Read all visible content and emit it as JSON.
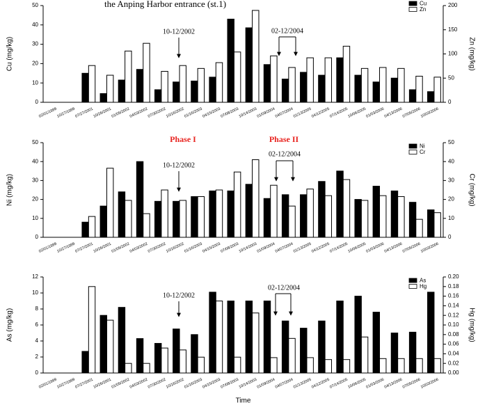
{
  "chart_data": [
    {
      "type": "bar",
      "title": "the Anping Harbor entrance (st.1)",
      "y_label": "Cu (mg/kg)",
      "y2_label": "Zn (mg/kg)",
      "categories": [
        "02/01/1999",
        "10/27/1999",
        "07/27/2001",
        "10/26/2001",
        "01/05/2002",
        "04/03/2002",
        "07/30/2002",
        "10/16/2002",
        "01/16/2003",
        "04/15/2003",
        "07/08/2003",
        "10/14/2003",
        "01/09/2004",
        "04/07/2004",
        "01/13/2005",
        "04/12/2005",
        "07/14/2005",
        "10/06/2005",
        "01/03/2006",
        "04/13/2006",
        "07/05/2006",
        "10/03/2006"
      ],
      "series": [
        {
          "name": "Cu",
          "color": "#000000",
          "values": [
            null,
            null,
            15,
            4.5,
            11.5,
            17,
            6.5,
            10.5,
            11,
            13,
            43,
            38.5,
            19.5,
            12,
            15.5,
            14,
            23,
            14,
            10.5,
            12.5,
            6.5,
            5.5
          ]
        },
        {
          "name": "Zn",
          "color": "#ffffff",
          "axis": "y2",
          "values": [
            null,
            null,
            76,
            56,
            106,
            122,
            64,
            76,
            70,
            82,
            104,
            190,
            96,
            72,
            92,
            92,
            116,
            70,
            72,
            70,
            54,
            52
          ]
        }
      ],
      "ylim": [
        0,
        50
      ],
      "yticks": [
        0,
        10,
        20,
        30,
        40,
        50
      ],
      "y2lim": [
        0,
        200
      ],
      "y2ticks": [
        0,
        50,
        100,
        150,
        200
      ],
      "annotations": [
        {
          "text": "10-12/2002",
          "color": "#000000"
        },
        {
          "text": "02-12/2004",
          "color": "#000000"
        }
      ]
    },
    {
      "type": "bar",
      "y_label": "Ni (mg/kg)",
      "y2_label": "Cr (mg/kg)",
      "categories": [
        "02/01/1999",
        "10/27/1999",
        "07/27/2001",
        "10/26/2001",
        "01/05/2002",
        "04/03/2002",
        "07/30/2002",
        "10/16/2002",
        "01/16/2003",
        "04/15/2003",
        "07/08/2003",
        "10/14/2003",
        "01/09/2004",
        "04/07/2004",
        "01/13/2005",
        "04/12/2005",
        "07/14/2005",
        "10/06/2005",
        "01/03/2006",
        "04/13/2006",
        "07/05/2006",
        "10/03/2006"
      ],
      "series": [
        {
          "name": "Ni",
          "color": "#000000",
          "values": [
            null,
            null,
            8,
            16.5,
            24,
            40,
            19,
            19,
            21.5,
            24.5,
            24.5,
            28,
            20.5,
            22.5,
            22.5,
            29.5,
            35,
            20,
            27,
            24.5,
            18.5,
            14.5
          ]
        },
        {
          "name": "Cr",
          "color": "#ffffff",
          "axis": "y2",
          "values": [
            null,
            null,
            11,
            36.5,
            19.5,
            12.5,
            25,
            19.5,
            21.5,
            25,
            34.5,
            41,
            27.5,
            16.5,
            25.5,
            22,
            30.5,
            19.5,
            22,
            21.5,
            9.5,
            13
          ]
        }
      ],
      "ylim": [
        0,
        50
      ],
      "yticks": [
        0,
        10,
        20,
        30,
        40,
        50
      ],
      "y2lim": [
        0,
        50
      ],
      "y2ticks": [
        0,
        10,
        20,
        30,
        40,
        50
      ],
      "annotations": [
        {
          "text": "Phase I",
          "color": "#e8231f"
        },
        {
          "text": "Phase II",
          "color": "#e8231f"
        },
        {
          "text": "10-12/2002",
          "color": "#000000"
        },
        {
          "text": "02-12/2004",
          "color": "#000000"
        }
      ]
    },
    {
      "type": "bar",
      "y_label": "As (mg/kg)",
      "y2_label": "Hg (mg/kg)",
      "x_label": "Time",
      "categories": [
        "02/01/1999",
        "10/27/1999",
        "07/27/2001",
        "10/26/2001",
        "01/05/2002",
        "04/03/2002",
        "07/30/2002",
        "10/16/2002",
        "01/16/2003",
        "04/15/2003",
        "07/08/2003",
        "10/14/2003",
        "01/09/2004",
        "04/07/2004",
        "01/13/2005",
        "04/12/2005",
        "07/14/2005",
        "10/06/2005",
        "01/03/2006",
        "04/13/2006",
        "07/05/2006",
        "10/03/2006"
      ],
      "series": [
        {
          "name": "As",
          "color": "#000000",
          "values": [
            null,
            null,
            2.7,
            7.2,
            8.2,
            4.3,
            3.7,
            5.5,
            4.8,
            10.1,
            9,
            9,
            9,
            6.5,
            5.6,
            6.5,
            9,
            9.6,
            7.6,
            5,
            5.1,
            10.1
          ]
        },
        {
          "name": "Hg",
          "color": "#ffffff",
          "axis": "y2",
          "values": [
            null,
            null,
            0.18,
            0.11,
            0.02,
            0.02,
            0.052,
            0.048,
            0.033,
            0.15,
            0.033,
            0.125,
            0.032,
            0.072,
            0.032,
            0.028,
            0.028,
            0.075,
            0.03,
            0.03,
            0.03,
            0.03
          ]
        }
      ],
      "ylim": [
        0,
        12
      ],
      "yticks": [
        0,
        2,
        4,
        6,
        8,
        10,
        12
      ],
      "y2lim": [
        0,
        0.2
      ],
      "y2ticks": [
        {
          "value": 0,
          "label": "0.00"
        },
        {
          "value": 0.02,
          "label": "0.02"
        },
        {
          "value": 0.04,
          "label": "0.04"
        },
        {
          "value": 0.06,
          "label": "0.06"
        },
        {
          "value": 0.08,
          "label": "0.08"
        },
        {
          "value": 0.1,
          "label": "0.10"
        },
        {
          "value": 0.12,
          "label": "0.12"
        },
        {
          "value": 0.14,
          "label": "0.14"
        },
        {
          "value": 0.16,
          "label": "0.16"
        },
        {
          "value": 0.18,
          "label": "0.18"
        },
        {
          "value": 0.2,
          "label": "0.20"
        }
      ],
      "annotations": [
        {
          "text": "10-12/2002",
          "color": "#000000"
        },
        {
          "text": "02-12/2004",
          "color": "#000000"
        }
      ]
    }
  ]
}
